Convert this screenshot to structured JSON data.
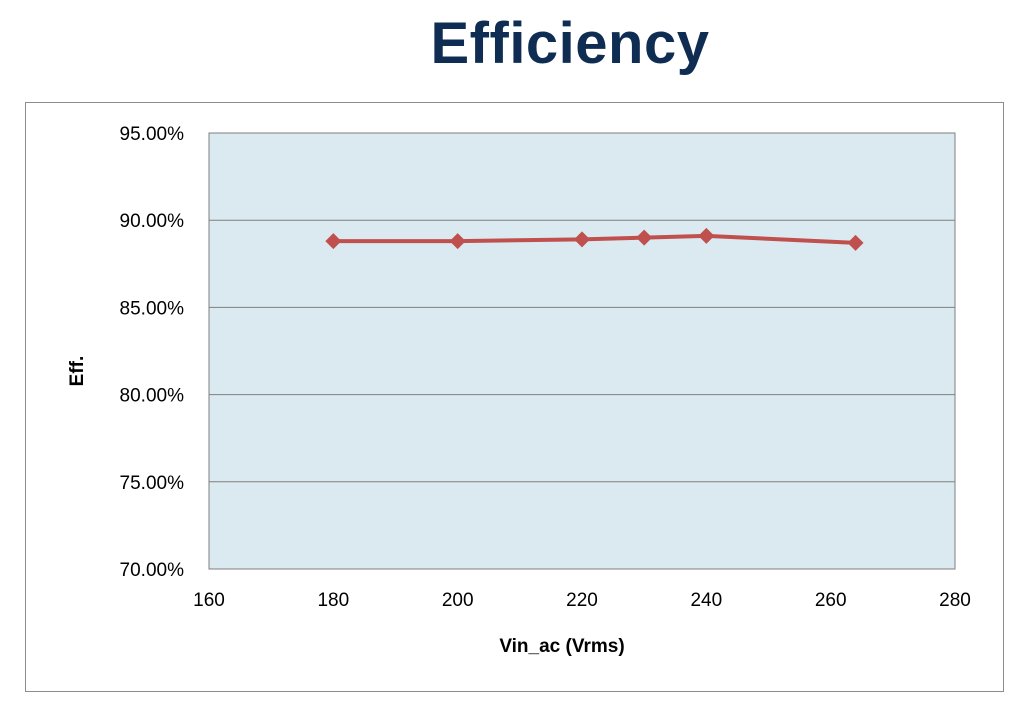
{
  "page": {
    "title": "Efficiency"
  },
  "chart_data": {
    "type": "line",
    "title": "Efficiency",
    "xlabel": "Vin_ac (Vrms)",
    "ylabel": "Eff.",
    "xlim": [
      160,
      280
    ],
    "ylim": [
      70,
      95
    ],
    "x_ticks": [
      160,
      180,
      200,
      220,
      240,
      260,
      280
    ],
    "x_tick_labels": [
      "160",
      "180",
      "200",
      "220",
      "240",
      "260",
      "280"
    ],
    "y_ticks": [
      70,
      75,
      80,
      85,
      90,
      95
    ],
    "y_tick_labels": [
      "70.00%",
      "75.00%",
      "80.00%",
      "85.00%",
      "90.00%",
      "95.00%"
    ],
    "grid": "horizontal",
    "legend": "none",
    "colors": {
      "plot_bg": "#dbeaf0",
      "series": "#c0504d",
      "grid": "#7f7f7f",
      "title": "#0f2d52"
    },
    "series": [
      {
        "x": [
          180,
          200,
          220,
          230,
          240,
          264
        ],
        "y": [
          88.8,
          88.8,
          88.9,
          89.0,
          89.1,
          88.7
        ]
      }
    ]
  }
}
